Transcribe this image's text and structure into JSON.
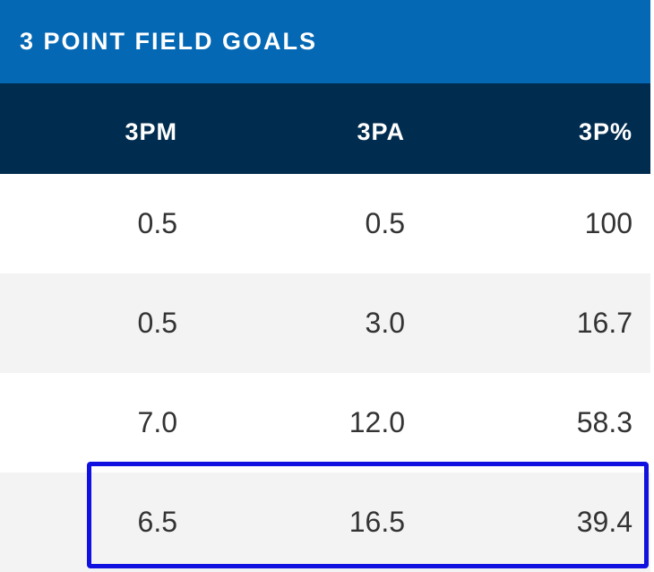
{
  "section": {
    "title": "3 POINT FIELD GOALS"
  },
  "columns": [
    "3PM",
    "3PA",
    "3P%"
  ],
  "rows": [
    [
      "0.5",
      "0.5",
      "100"
    ],
    [
      "0.5",
      "3.0",
      "16.7"
    ],
    [
      "7.0",
      "12.0",
      "58.3"
    ],
    [
      "6.5",
      "16.5",
      "39.4"
    ]
  ],
  "highlight": {
    "color": "#1010e0",
    "row_index": 3
  },
  "colors": {
    "header_bg": "#0568b4",
    "subheader_bg": "#002c4f",
    "row_alt_bg": "#f3f3f3"
  }
}
